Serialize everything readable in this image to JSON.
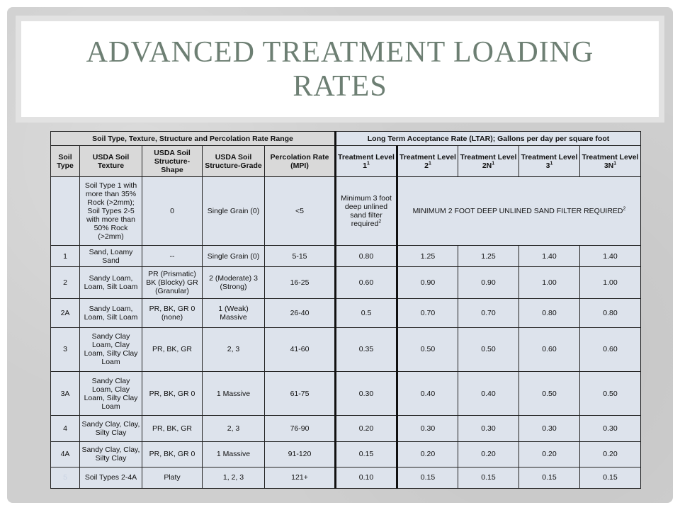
{
  "title": "ADVANCED TREATMENT LOADING RATES",
  "table": {
    "group_left": "Soil Type, Texture, Structure and Percolation Rate Range",
    "group_right": "Long Term Acceptance Rate (LTAR); Gallons per day per square foot",
    "headers": {
      "soil_type": "Soil Type",
      "texture": "USDA Soil Texture",
      "shape": "USDA Soil Structure-Shape",
      "grade": "USDA Soil Structure-Grade",
      "perc": "Percolation Rate (MPI)",
      "tl1": "Treatment Level 1",
      "tl2": "Treatment Level 2",
      "tl2n": "Treatment Level 2N",
      "tl3": "Treatment Level 3",
      "tl3n": "Treatment Level 3N",
      "footnote": "1"
    },
    "first_row": {
      "texture": "Soil Type 1 with more than 35% Rock (>2mm); Soil Types 2-5 with more than 50% Rock (>2mm)",
      "shape": "0",
      "grade": "Single Grain (0)",
      "perc": "<5",
      "tl1": "Minimum 3 foot deep unlined sand filter required",
      "tl1_note": "2",
      "merged": "MINIMUM 2 FOOT DEEP UNLINED SAND FILTER REQUIRED",
      "merged_note": "2"
    },
    "rows": [
      {
        "type": "1",
        "texture": "Sand, Loamy Sand",
        "shape": "--",
        "grade": "Single Grain (0)",
        "perc": "5-15",
        "tl1": "0.80",
        "tl2": "1.25",
        "tl2n": "1.25",
        "tl3": "1.40",
        "tl3n": "1.40"
      },
      {
        "type": "2",
        "texture": "Sandy Loam, Loam, Silt Loam",
        "shape": "PR (Prismatic) BK (Blocky) GR (Granular)",
        "grade": "2 (Moderate) 3 (Strong)",
        "perc": "16-25",
        "tl1": "0.60",
        "tl2": "0.90",
        "tl2n": "0.90",
        "tl3": "1.00",
        "tl3n": "1.00"
      },
      {
        "type": "2A",
        "texture": "Sandy Loam, Loam, Silt Loam",
        "shape": "PR, BK, GR 0 (none)",
        "grade": "1 (Weak) Massive",
        "perc": "26-40",
        "tl1": "0.5",
        "tl2": "0.70",
        "tl2n": "0.70",
        "tl3": "0.80",
        "tl3n": "0.80"
      },
      {
        "type": "3",
        "texture": "Sandy Clay Loam, Clay Loam, Silty Clay Loam",
        "shape": "PR, BK, GR",
        "grade": "2, 3",
        "perc": "41-60",
        "tl1": "0.35",
        "tl2": "0.50",
        "tl2n": "0.50",
        "tl3": "0.60",
        "tl3n": "0.60"
      },
      {
        "type": "3A",
        "texture": "Sandy Clay Loam, Clay Loam, Silty Clay Loam",
        "shape": "PR, BK, GR 0",
        "grade": "1 Massive",
        "perc": "61-75",
        "tl1": "0.30",
        "tl2": "0.40",
        "tl2n": "0.40",
        "tl3": "0.50",
        "tl3n": "0.50"
      },
      {
        "type": "4",
        "texture": "Sandy Clay, Clay, Silty Clay",
        "shape": "PR, BK, GR",
        "grade": "2, 3",
        "perc": "76-90",
        "tl1": "0.20",
        "tl2": "0.30",
        "tl2n": "0.30",
        "tl3": "0.30",
        "tl3n": "0.30"
      },
      {
        "type": "4A",
        "texture": "Sandy Clay, Clay, Silty Clay",
        "shape": "PR, BK, GR 0",
        "grade": "1 Massive",
        "perc": "91-120",
        "tl1": "0.15",
        "tl2": "0.20",
        "tl2n": "0.20",
        "tl3": "0.20",
        "tl3n": "0.20"
      },
      {
        "type": "5",
        "texture": "Soil Types 2-4A",
        "shape": "Platy",
        "grade": "1, 2, 3",
        "perc": "121+",
        "tl1": "0.10",
        "tl2": "0.15",
        "tl2n": "0.15",
        "tl3": "0.15",
        "tl3n": "0.15"
      }
    ]
  }
}
